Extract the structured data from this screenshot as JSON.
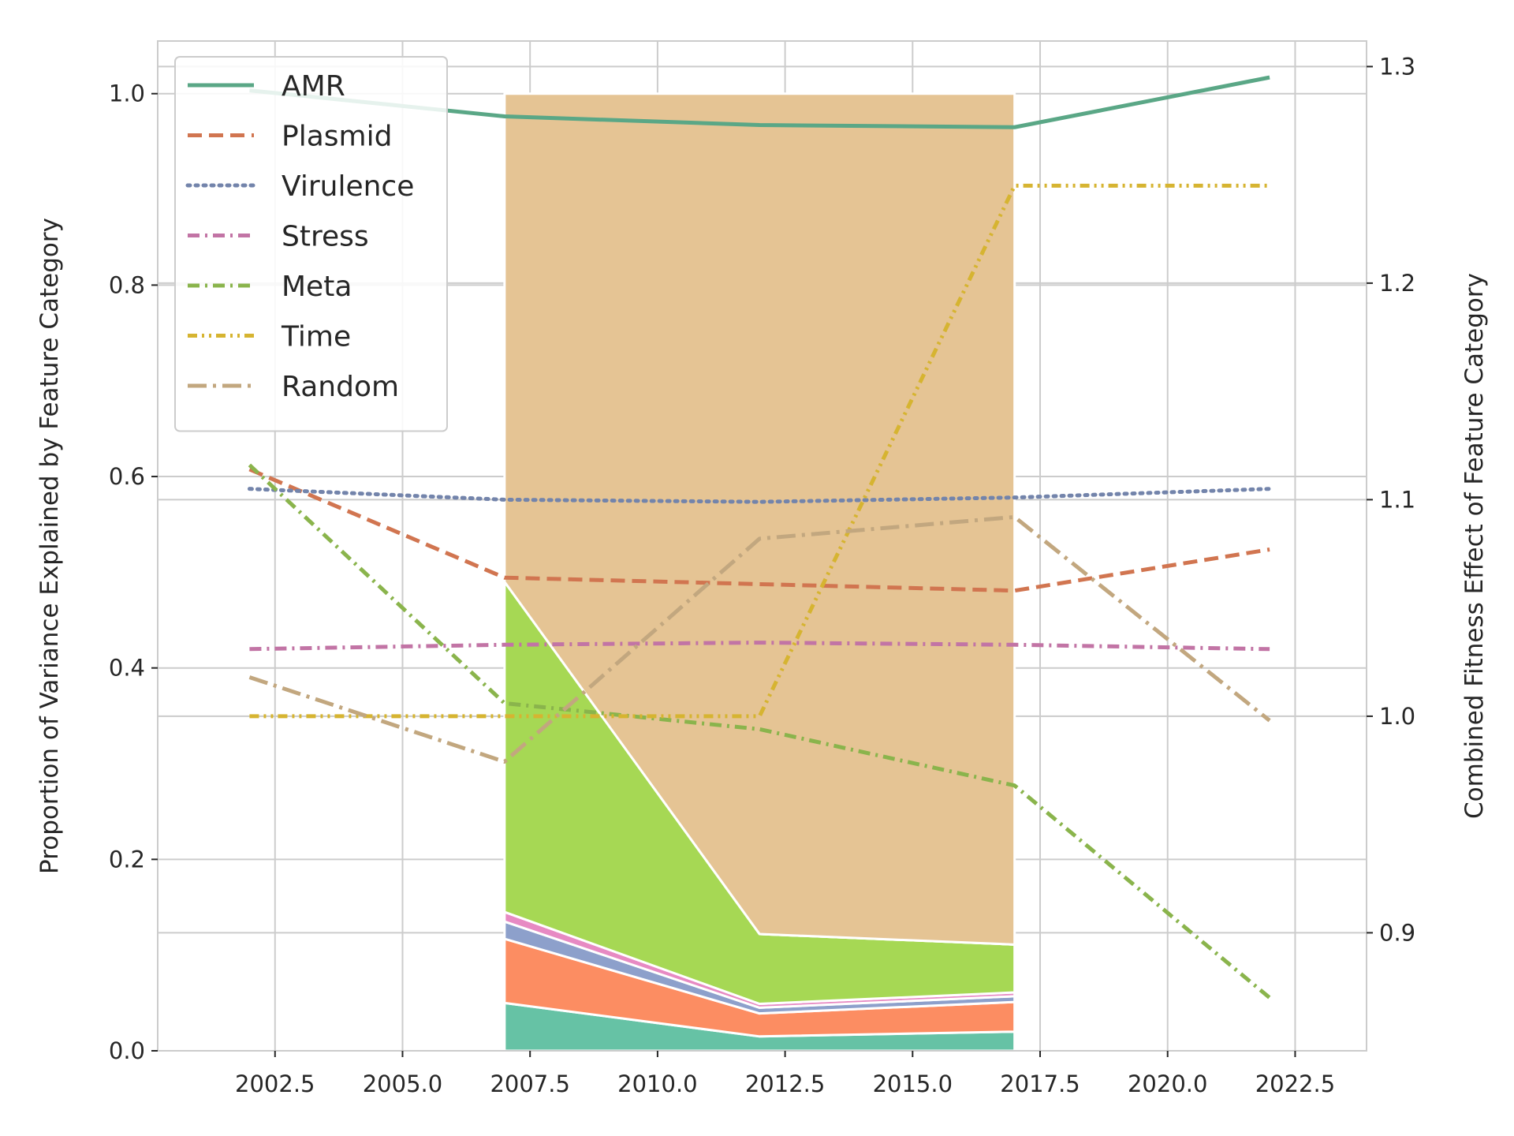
{
  "chart_data": {
    "type": "line",
    "title": "",
    "xlabel": "",
    "ylabel_left": "Proportion of Variance Explained by Feature Category",
    "ylabel_right": "Combined Fitness Effect of Feature Category",
    "xlim": [
      2000.2,
      2023.9
    ],
    "ylim_left": [
      0.0,
      1.055
    ],
    "ylim_right": [
      0.8455,
      1.3118
    ],
    "x_ticks": [
      2002.5,
      2005.0,
      2007.5,
      2010.0,
      2012.5,
      2015.0,
      2017.5,
      2020.0,
      2022.5
    ],
    "x_tick_labels": [
      "2002.5",
      "2005.0",
      "2007.5",
      "2010.0",
      "2012.5",
      "2015.0",
      "2017.5",
      "2020.0",
      "2022.5"
    ],
    "y_ticks_left": [
      0.0,
      0.2,
      0.4,
      0.6,
      0.8,
      1.0
    ],
    "y_tick_labels_left": [
      "0.0",
      "0.2",
      "0.4",
      "0.6",
      "0.8",
      "1.0"
    ],
    "y_ticks_right": [
      0.9,
      1.0,
      1.1,
      1.2,
      1.3
    ],
    "y_tick_labels_right": [
      "0.9",
      "1.0",
      "1.1",
      "1.2",
      "1.3"
    ],
    "grid": true,
    "legend_position": "top-left",
    "stack": {
      "axis": "left",
      "x": [
        2007.0,
        2012.0,
        2017.0
      ],
      "layers": [
        {
          "name": "AMR",
          "values": [
            0.05,
            0.015,
            0.02
          ],
          "color": "#66c2a5"
        },
        {
          "name": "Plasmid",
          "values": [
            0.067,
            0.024,
            0.031
          ],
          "color": "#fc8d62"
        },
        {
          "name": "Virulence",
          "values": [
            0.018,
            0.006,
            0.006
          ],
          "color": "#8da0cb"
        },
        {
          "name": "Stress",
          "values": [
            0.01,
            0.004,
            0.004
          ],
          "color": "#e78ac3"
        },
        {
          "name": "Meta",
          "values": [
            0.345,
            0.073,
            0.05
          ],
          "color": "#a6d854"
        },
        {
          "name": "Time",
          "values": [
            0.0,
            0.0,
            0.0
          ],
          "color": "#ffd92f"
        },
        {
          "name": "Random",
          "values": [
            0.51,
            0.878,
            0.889
          ],
          "color": "#e5c494"
        }
      ]
    },
    "series": [
      {
        "name": "AMR",
        "axis": "right",
        "color": "#5aa786",
        "dash": "solid",
        "x": [
          2002.0,
          2007.0,
          2012.0,
          2017.0,
          2022.0
        ],
        "values": [
          1.289,
          1.277,
          1.273,
          1.272,
          1.295
        ]
      },
      {
        "name": "Plasmid",
        "axis": "right",
        "color": "#d17550",
        "dash": "dashed",
        "x": [
          2002.0,
          2007.0,
          2012.0,
          2017.0,
          2022.0
        ],
        "values": [
          1.114,
          1.064,
          1.061,
          1.058,
          1.077
        ]
      },
      {
        "name": "Virulence",
        "axis": "right",
        "color": "#7384ab",
        "dash": "dotted",
        "x": [
          2002.0,
          2007.0,
          2012.0,
          2017.0,
          2022.0
        ],
        "values": [
          1.105,
          1.1,
          1.099,
          1.101,
          1.105
        ]
      },
      {
        "name": "Stress",
        "axis": "right",
        "color": "#c274a5",
        "dash": "dashdot",
        "x": [
          2002.0,
          2007.0,
          2012.0,
          2017.0,
          2022.0
        ],
        "values": [
          1.031,
          1.033,
          1.034,
          1.033,
          1.031
        ]
      },
      {
        "name": "Meta",
        "axis": "right",
        "color": "#8ab44c",
        "dash": "dashdot",
        "x": [
          2002.0,
          2007.0,
          2012.0,
          2017.0,
          2022.0
        ],
        "values": [
          1.116,
          1.006,
          0.994,
          0.968,
          0.87
        ]
      },
      {
        "name": "Time",
        "axis": "right",
        "color": "#d6b431",
        "dash": "dashdotdot",
        "x": [
          2002.0,
          2007.0,
          2012.0,
          2017.0,
          2022.0
        ],
        "values": [
          1.0,
          1.0,
          1.0,
          1.245,
          1.245
        ]
      },
      {
        "name": "Random",
        "axis": "right",
        "color": "#c2a77f",
        "dash": "longdashdot",
        "x": [
          2002.0,
          2007.0,
          2012.0,
          2017.0,
          2022.0
        ],
        "values": [
          1.018,
          0.979,
          1.082,
          1.092,
          0.998
        ]
      }
    ]
  }
}
